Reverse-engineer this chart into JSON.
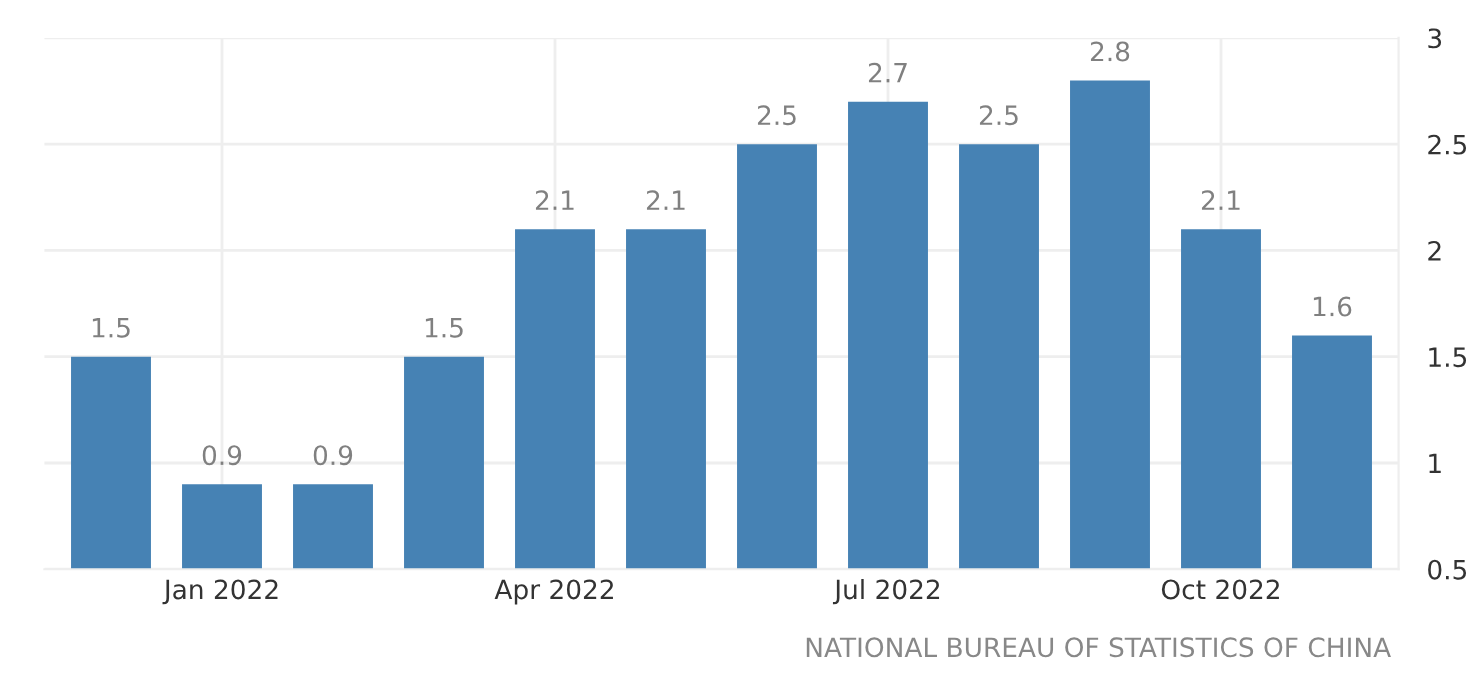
{
  "chart_data": {
    "type": "bar",
    "categories": [
      null,
      "Jan 2022",
      null,
      null,
      "Apr 2022",
      null,
      null,
      "Jul 2022",
      null,
      null,
      "Oct 2022",
      null
    ],
    "values": [
      1.5,
      0.9,
      0.9,
      1.5,
      2.1,
      2.1,
      2.5,
      2.7,
      2.5,
      2.8,
      2.1,
      1.6
    ],
    "color": "#4682b4",
    "ylim": [
      0.5,
      3
    ],
    "yticks": [
      0.5,
      1,
      1.5,
      2,
      2.5,
      3
    ],
    "grid": true,
    "data_labels": true,
    "annotations": [
      "NATIONAL BUREAU OF STATISTICS OF CHINA"
    ]
  }
}
